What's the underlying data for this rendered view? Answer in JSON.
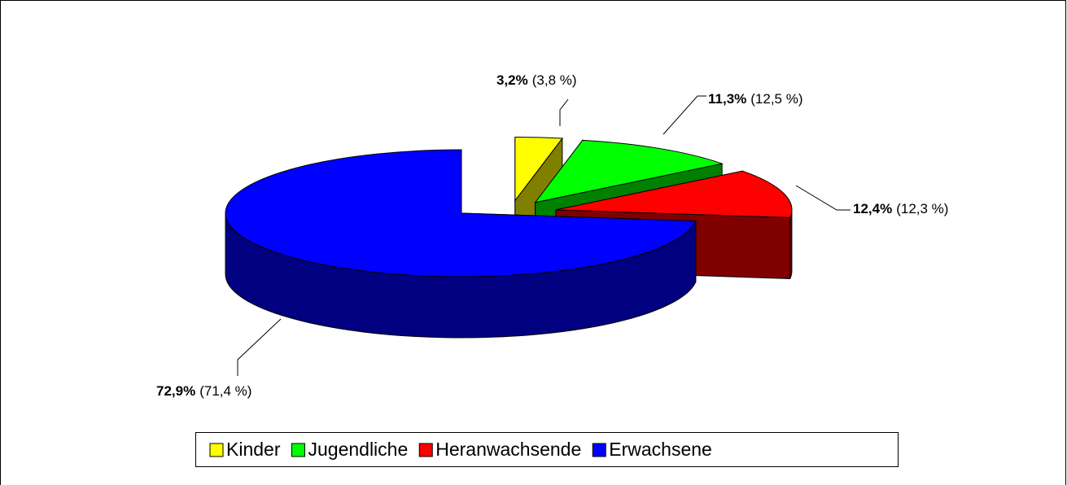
{
  "chart_data": {
    "type": "pie3d",
    "categories": [
      "Kinder",
      "Jugendliche",
      "Heranwachsende",
      "Erwachsene"
    ],
    "colors": [
      "#ffff00",
      "#00ff00",
      "#ff0000",
      "#0000ff"
    ],
    "series": [
      {
        "values": [
          3.2,
          11.3,
          12.4,
          72.9
        ],
        "value_labels": [
          "3,2%",
          "11,3%",
          "12,4%",
          "72,9%"
        ]
      },
      {
        "values": [
          3.8,
          12.5,
          12.3,
          71.4
        ],
        "value_labels": [
          "(3,8 %)",
          "(12,5 %)",
          "(12,3 %)",
          "(71,4 %)"
        ]
      }
    ],
    "legend": "bottom"
  }
}
